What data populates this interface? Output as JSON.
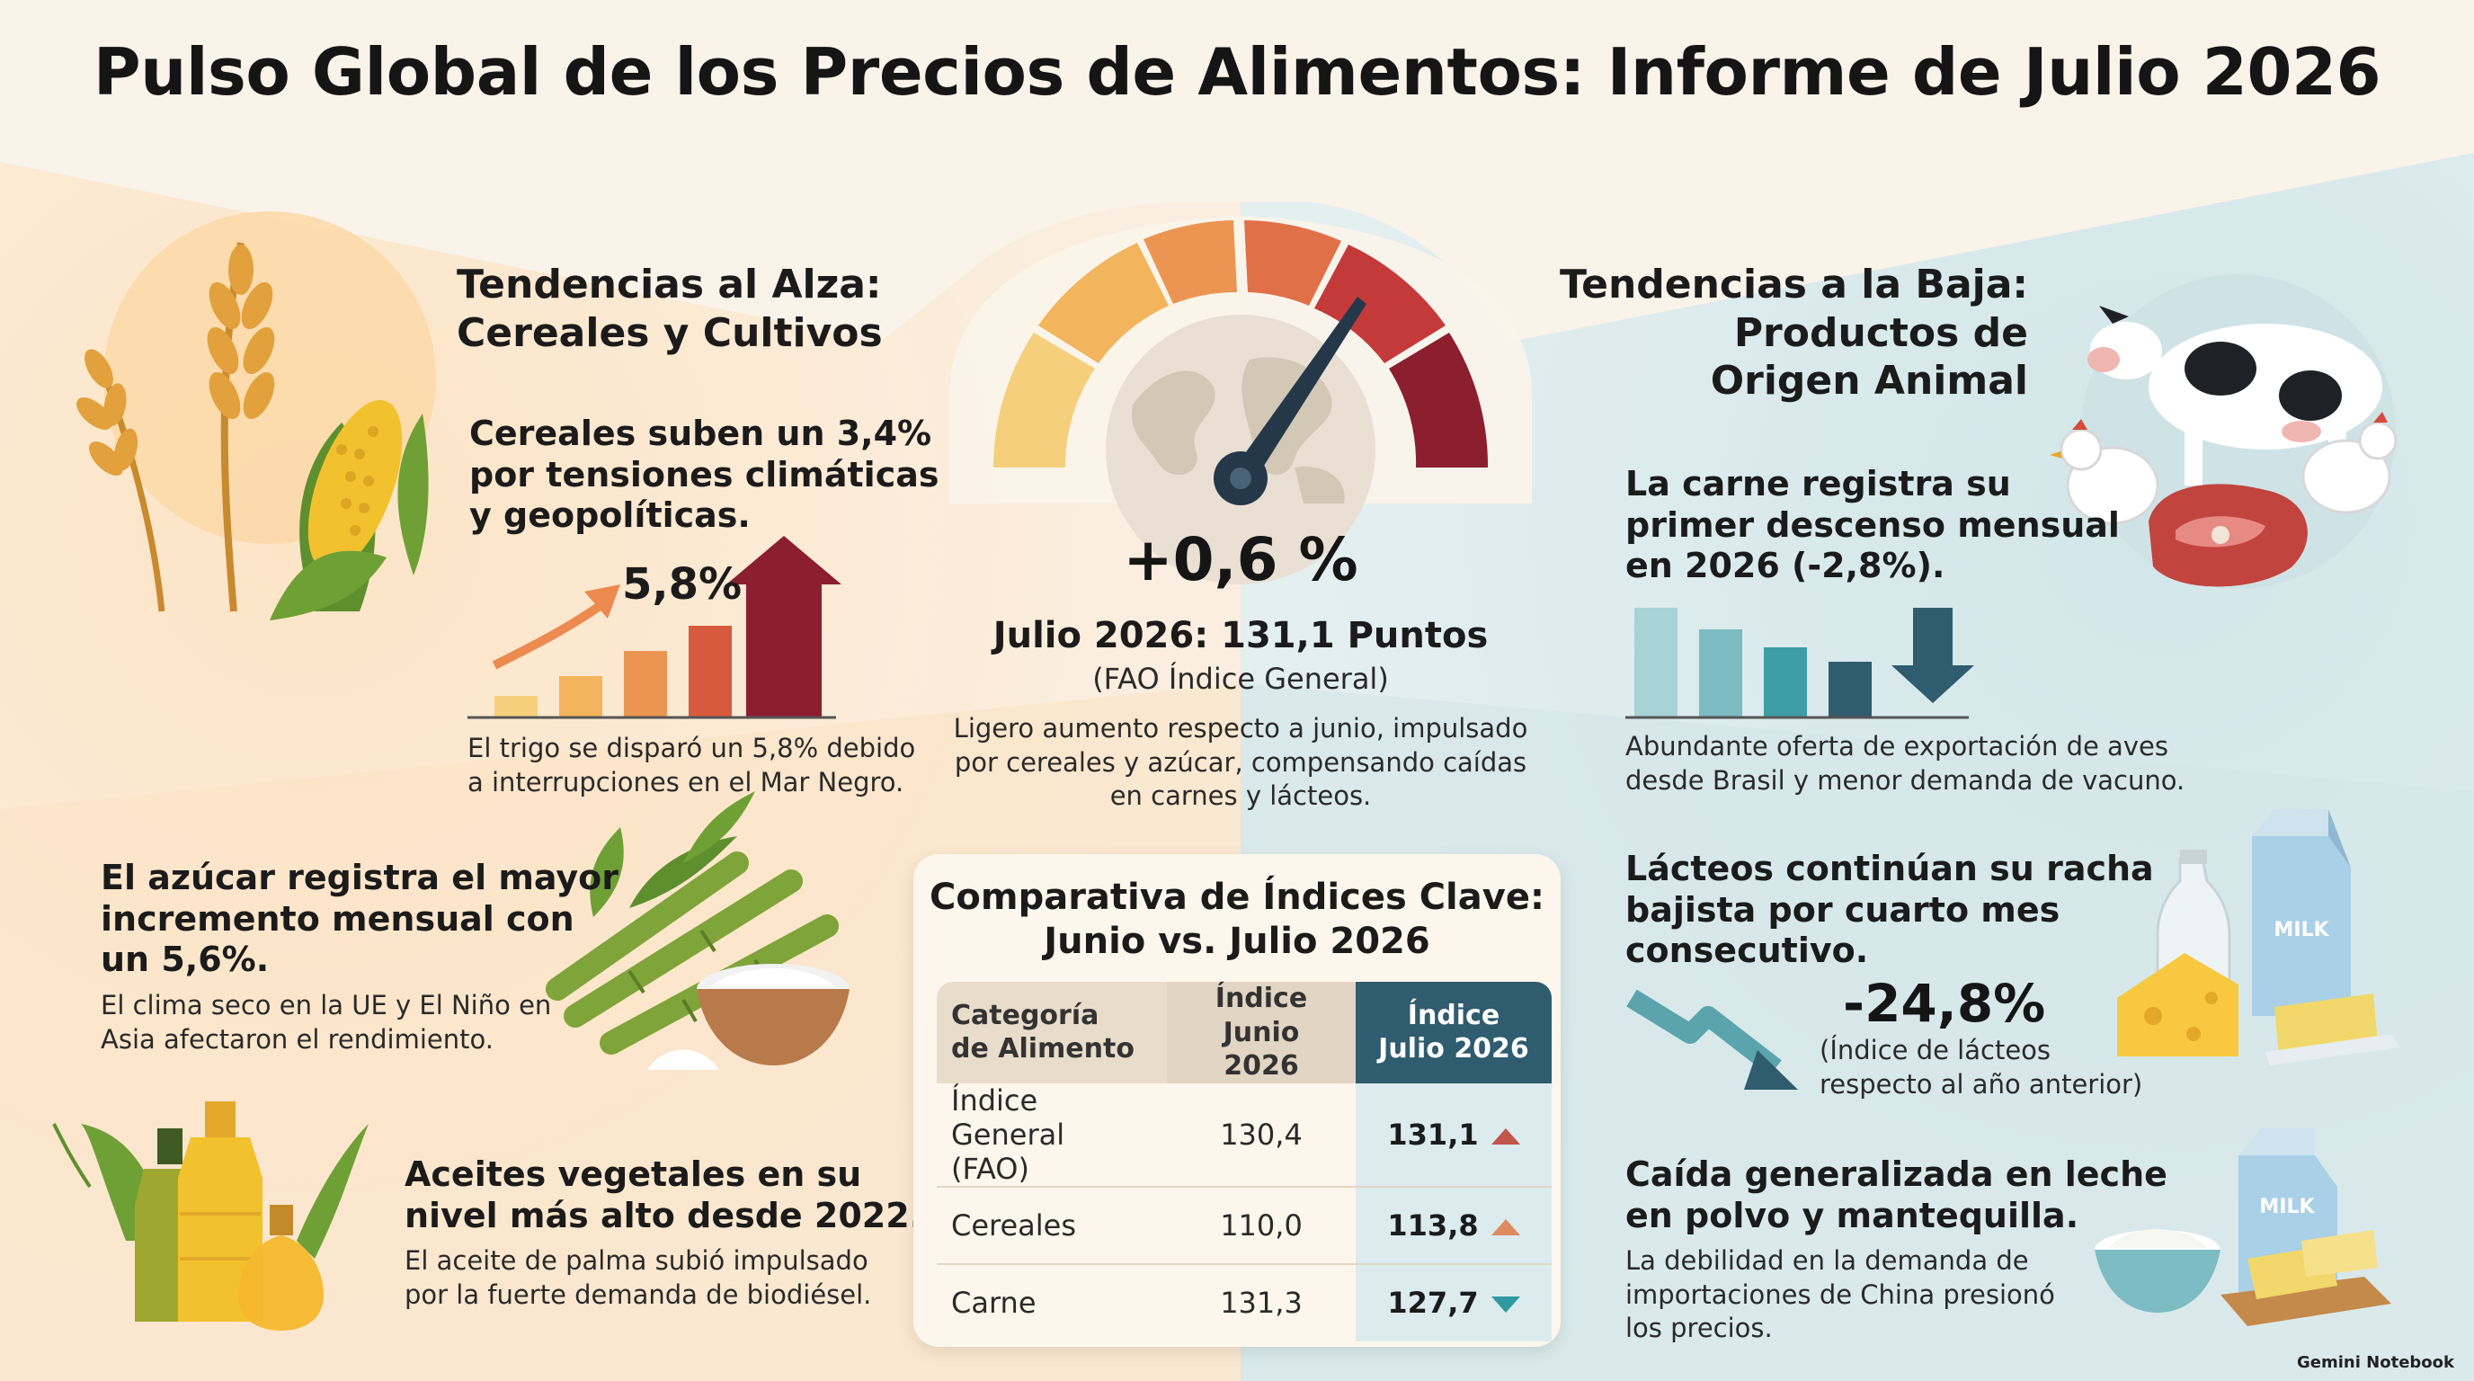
{
  "title": "Pulso Global de los Precios de Alimentos: Informe de Julio 2026",
  "colors": {
    "left_bg": "#fbe9d2",
    "right_bg": "#dceaec",
    "gauge_red": "#8b1e2f",
    "accent_teal": "#2f5c6e"
  },
  "rising": {
    "heading_line1": "Tendencias al Alza:",
    "heading_line2": "Cereales y Cultivos",
    "cereals": {
      "line1": "Cereales suben un 3,4%",
      "line2": "por tensiones climáticas",
      "line3": "y geopolíticas.",
      "chart_label": "5,8%",
      "note_line1": "El trigo se disparó un 5,8% debido",
      "note_line2": "a interrupciones en el Mar Negro."
    },
    "sugar": {
      "line1": "El azúcar registra el mayor",
      "line2": "incremento mensual con",
      "line3": "un 5,6%.",
      "note_line1": "El clima seco en la UE y El Niño en",
      "note_line2": "Asia afectaron el rendimiento."
    },
    "oils": {
      "line1": "Aceites vegetales en su",
      "line2": "nivel más alto desde 2022.",
      "note_line1": "El aceite de palma subió impulsado",
      "note_line2": "por la fuerte demanda de biodiésel."
    }
  },
  "center": {
    "change": "+0,6 %",
    "points": "Julio 2026: 131,1 Puntos",
    "index_name": "(FAO Índice General)",
    "desc_line1": "Ligero aumento respecto a junio, impulsado",
    "desc_line2": "por cereales y azúcar, compensando caídas",
    "desc_line3": "en carnes y lácteos."
  },
  "falling": {
    "heading_line1": "Tendencias a la Baja:",
    "heading_line2": "Productos de",
    "heading_line3": "Origen Animal",
    "meat": {
      "line1": "La carne registra su",
      "line2": "primer descenso mensual",
      "line3": "en 2026 (-2,8%).",
      "note_line1": "Abundante oferta de exportación de aves",
      "note_line2": "desde Brasil y menor demanda de vacuno."
    },
    "dairy": {
      "line1": "Lácteos continúan su racha",
      "line2": "bajista por cuarto mes",
      "line3": "consecutivo.",
      "value": "-24,8%",
      "note_line1": "(Índice de lácteos",
      "note_line2": "respecto al año anterior)",
      "carton_label": "MILK"
    },
    "powder": {
      "line1": "Caída generalizada en leche",
      "line2": "en polvo y mantequilla.",
      "note_line1": "La debilidad en la demanda de",
      "note_line2": "importaciones de China presionó",
      "note_line3": "los precios.",
      "carton_label": "MILK"
    }
  },
  "comparison": {
    "title_line1": "Comparativa de Índices Clave:",
    "title_line2": "Junio vs. Julio 2026",
    "headers": {
      "category_line1": "Categoría",
      "category_line2": "de Alimento",
      "june_line1": "Índice",
      "june_line2": "Junio 2026",
      "july_line1": "Índice",
      "july_line2": "Julio 2026"
    },
    "rows": [
      {
        "category_line1": "Índice General",
        "category_line2": "(FAO)",
        "june": "130,4",
        "july": "131,1",
        "trend": "up"
      },
      {
        "category_line1": "Cereales",
        "category_line2": "",
        "june": "110,0",
        "july": "113,8",
        "trend": "up"
      },
      {
        "category_line1": "Carne",
        "category_line2": "",
        "june": "131,3",
        "july": "127,7",
        "trend": "down"
      }
    ]
  },
  "brand": "Gemini Notebook"
}
